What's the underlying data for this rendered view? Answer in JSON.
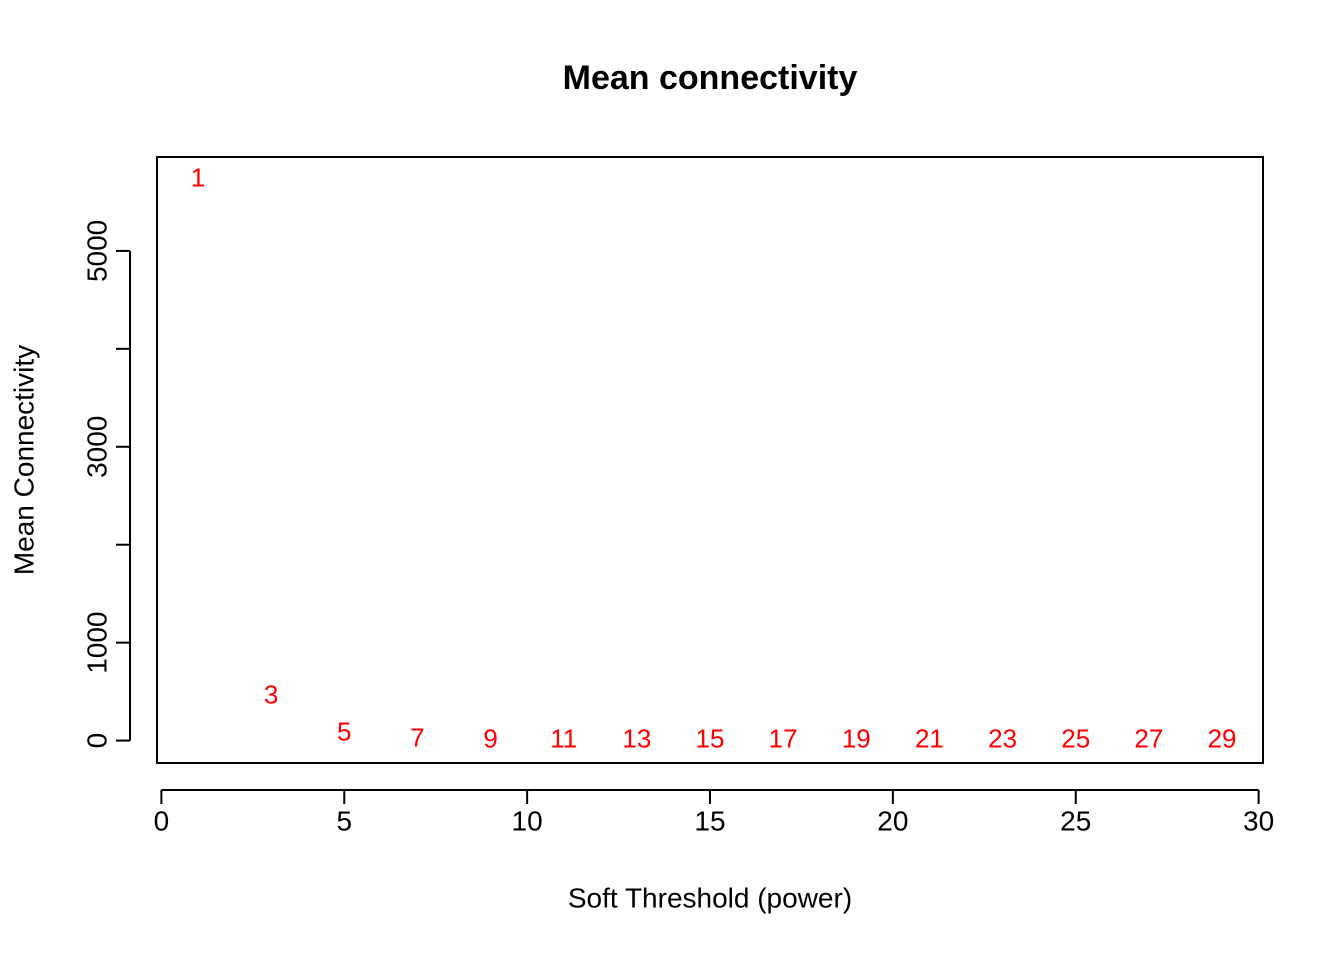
{
  "chart_data": {
    "type": "scatter-text",
    "title": "Mean connectivity",
    "x_label": "Soft Threshold (power)",
    "y_label": "Mean Connectivity",
    "x": [
      1,
      3,
      5,
      7,
      9,
      11,
      13,
      15,
      17,
      19,
      21,
      23,
      25,
      27,
      29
    ],
    "series": [
      {
        "name": "Mean connectivity",
        "color": "#ff0000",
        "values": [
          5730,
          450,
          72,
          10,
          2,
          1,
          0,
          0,
          0,
          0,
          0,
          0,
          0,
          0,
          0
        ]
      }
    ],
    "xlim": [
      -0.12,
      30.12
    ],
    "ylim": [
      -229,
      5959
    ],
    "xticks": [
      0,
      5,
      10,
      15,
      20,
      25,
      30
    ],
    "yticks": [
      0,
      1000,
      {
        "value": 2000,
        "label": null
      },
      3000,
      {
        "value": 4000,
        "label": null
      },
      5000
    ],
    "grid": false
  }
}
